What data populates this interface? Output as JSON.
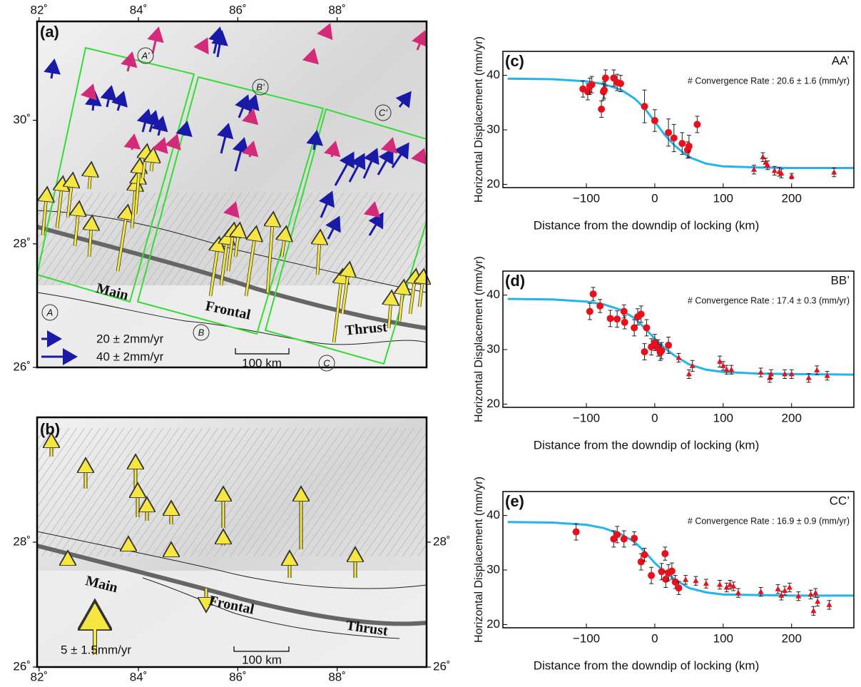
{
  "chart_data": [
    {
      "type": "scatter",
      "panel_label": "(c)",
      "profile": "AA’",
      "annotation": "# Convergence Rate : 20.6 ± 1.6 (mm/yr)",
      "xlabel": "Distance from the downdip of locking (km)",
      "ylabel": "Horizontal Displacement (mm/yr)",
      "xlim": [
        -222,
        291
      ],
      "ylim": [
        19.4,
        44.4
      ],
      "xticks": [
        {
          "value": -100,
          "label": "−100"
        },
        0,
        100,
        200
      ],
      "yticks": [
        20,
        30,
        40
      ],
      "series": [
        {
          "marker": "line",
          "color": "#22b5ea",
          "x": [
            -215,
            -150,
            -100,
            -75,
            -50,
            -30,
            -15,
            0,
            15,
            30,
            50,
            75,
            100,
            150,
            200,
            291
          ],
          "values": [
            39.4,
            39.3,
            38.9,
            38.4,
            37.4,
            35.8,
            34.0,
            31.5,
            29.0,
            27.0,
            25.0,
            23.8,
            23.3,
            23.1,
            23.0,
            23.0
          ]
        },
        {
          "marker": "circle",
          "color": "#e8101c",
          "x": [
            -105,
            -98,
            -95,
            -92,
            -78,
            -75,
            -74,
            -72,
            -60,
            -55,
            -50,
            -15,
            0,
            20,
            28,
            40,
            48,
            50,
            62
          ],
          "values": [
            37.5,
            37,
            38,
            38.3,
            33.8,
            37,
            37.3,
            39.5,
            39.5,
            38.7,
            38.5,
            34.3,
            31.7,
            29.5,
            28.5,
            27.5,
            26.3,
            27,
            31
          ],
          "errors": [
            1.5,
            1.5,
            1.5,
            1.5,
            1.5,
            1.5,
            1.5,
            1.5,
            1.5,
            1.5,
            1.5,
            3,
            2,
            2.5,
            2.5,
            2,
            1.5,
            2,
            1.5
          ]
        },
        {
          "marker": "triangle",
          "color": "#e8101c",
          "x": [
            145,
            158,
            162,
            165,
            175,
            182,
            185,
            200,
            262
          ],
          "values": [
            22.7,
            25,
            24,
            23.5,
            22.5,
            22.3,
            22,
            21.5,
            22.2
          ],
          "errors": [
            0.8,
            0.8,
            0.8,
            0.8,
            0.8,
            0.8,
            0.8,
            0.5,
            0.8
          ]
        }
      ]
    },
    {
      "type": "scatter",
      "panel_label": "(d)",
      "profile": "BB’",
      "annotation": "# Convergence Rate : 17.4 ± 0.3 (mm/yr)",
      "xlabel": "Distance from the downdip of locking (km)",
      "ylabel": "Horizontal Displacement (mm/yr)",
      "xlim": [
        -222,
        291
      ],
      "ylim": [
        19.4,
        44.4
      ],
      "xticks": [
        {
          "value": -100,
          "label": "−100"
        },
        0,
        100,
        200
      ],
      "yticks": [
        20,
        30,
        40
      ],
      "series": [
        {
          "marker": "line",
          "color": "#22b5ea",
          "x": [
            -215,
            -150,
            -100,
            -75,
            -50,
            -30,
            -15,
            0,
            15,
            30,
            50,
            75,
            100,
            150,
            200,
            291
          ],
          "values": [
            39.3,
            39.2,
            38.8,
            38.3,
            37.3,
            35.8,
            34.0,
            32.0,
            30.2,
            28.8,
            27.3,
            26.3,
            25.9,
            25.6,
            25.5,
            25.4
          ]
        },
        {
          "marker": "circle",
          "color": "#e8101c",
          "x": [
            -95,
            -90,
            -80,
            -65,
            -55,
            -45,
            -44,
            -30,
            -25,
            -20,
            -15,
            -12,
            -5,
            0,
            5,
            8,
            10,
            20
          ],
          "values": [
            37,
            40.2,
            38,
            35.7,
            35.6,
            37,
            35,
            34,
            36,
            36.5,
            29.6,
            34,
            30.5,
            31.3,
            30.3,
            29.5,
            29.8,
            30.8
          ],
          "errors": [
            1.5,
            1.2,
            1.2,
            1.5,
            1.5,
            1.2,
            1.2,
            1.5,
            1.5,
            1.5,
            1.5,
            1.5,
            1.5,
            1.5,
            1.5,
            1.5,
            1.5,
            1.5
          ]
        },
        {
          "marker": "triangle",
          "color": "#e8101c",
          "x": [
            35,
            50,
            55,
            95,
            100,
            105,
            112,
            155,
            168,
            170,
            190,
            200,
            225,
            237,
            252
          ],
          "values": [
            28.5,
            25.5,
            27,
            27.8,
            27,
            26.3,
            26.3,
            25.8,
            24.8,
            25.5,
            25.5,
            25.5,
            24.8,
            26.2,
            25.2
          ],
          "errors": [
            0.8,
            0.8,
            1,
            1,
            0.8,
            0.8,
            0.8,
            0.8,
            0.8,
            0.8,
            0.8,
            0.8,
            0.8,
            0.8,
            0.8
          ]
        }
      ]
    },
    {
      "type": "scatter",
      "panel_label": "(e)",
      "profile": "CC’",
      "annotation": "# Convergence Rate : 16.9 ± 0.9 (mm/yr)",
      "xlabel": "Distance from the downdip of locking (km)",
      "ylabel": "Horizontal Displacement (mm/yr)",
      "xlim": [
        -222,
        291
      ],
      "ylim": [
        19.4,
        44.4
      ],
      "xticks": [
        {
          "value": -100,
          "label": "−100"
        },
        0,
        100,
        200
      ],
      "yticks": [
        20,
        30,
        40
      ],
      "series": [
        {
          "marker": "line",
          "color": "#22b5ea",
          "x": [
            -215,
            -150,
            -100,
            -75,
            -50,
            -30,
            -15,
            0,
            15,
            30,
            50,
            75,
            100,
            150,
            200,
            291
          ],
          "values": [
            38.8,
            38.7,
            38.3,
            37.7,
            36.6,
            35.2,
            33.4,
            31.3,
            29.6,
            28.2,
            26.7,
            25.9,
            25.5,
            25.4,
            25.3,
            25.3
          ]
        },
        {
          "marker": "circle",
          "color": "#e8101c",
          "x": [
            -115,
            -60,
            -55,
            -45,
            -30,
            -20,
            -15,
            -5,
            10,
            15,
            16,
            20,
            25,
            30,
            35
          ],
          "values": [
            37,
            35.7,
            36.5,
            35.7,
            35.8,
            31.5,
            32.8,
            29,
            29.7,
            33,
            28.3,
            29.5,
            29.8,
            27.8,
            26.7
          ],
          "errors": [
            1.5,
            1.5,
            1.5,
            1.5,
            1.2,
            1.5,
            1.2,
            1.5,
            1.5,
            1.2,
            1.5,
            1.5,
            1.5,
            1.2,
            1.2
          ]
        },
        {
          "marker": "triangle",
          "color": "#e8101c",
          "x": [
            45,
            60,
            75,
            95,
            105,
            110,
            115,
            122,
            155,
            180,
            185,
            190,
            197,
            210,
            228,
            232,
            235,
            238,
            255
          ],
          "values": [
            28.2,
            28,
            27.5,
            27.3,
            26.8,
            27.3,
            27,
            25.8,
            26,
            26.5,
            25.3,
            26.2,
            26.8,
            25.2,
            25.5,
            22.5,
            25.8,
            24.2,
            23.6
          ],
          "errors": [
            0.8,
            0.8,
            0.8,
            0.8,
            0.8,
            0.8,
            0.8,
            0.8,
            0.8,
            0.8,
            0.8,
            0.8,
            0.8,
            0.8,
            0.8,
            0.8,
            0.8,
            0.8,
            0.8
          ]
        }
      ]
    }
  ],
  "maps": [
    {
      "panel_label": "(a)",
      "xlim": [
        81.96,
        89.8
      ],
      "ylim": [
        26,
        31.6
      ],
      "xticks": [
        {
          "value": 82,
          "label": "82˚"
        },
        {
          "value": 84,
          "label": "84˚"
        },
        {
          "value": 86,
          "label": "86˚"
        },
        {
          "value": 88,
          "label": "88˚"
        }
      ],
      "yticks": [
        {
          "value": 26,
          "label": "26˚"
        },
        {
          "value": 28,
          "label": "28˚"
        },
        {
          "value": 30,
          "label": "30˚"
        }
      ],
      "fault_labels": [
        "Main",
        "Frontal",
        "Thrust"
      ],
      "profile_labels": [
        "A",
        "A’",
        "B",
        "B’",
        "C",
        "C’"
      ],
      "legend": [
        "20 ± 2mm/yr",
        "40 ± 2mm/yr"
      ],
      "scale_bar": "100 km"
    },
    {
      "panel_label": "(b)",
      "xlim": [
        81.96,
        89.8
      ],
      "ylim": [
        26,
        30
      ],
      "xticks": [
        {
          "value": 82,
          "label": "82˚"
        },
        {
          "value": 84,
          "label": "84˚"
        },
        {
          "value": 86,
          "label": "86˚"
        },
        {
          "value": 88,
          "label": "88˚"
        }
      ],
      "yticks": [
        {
          "value": 26,
          "label": "26˚"
        },
        {
          "value": 28,
          "label": "28˚"
        }
      ],
      "fault_labels": [
        "Main",
        "Frontal",
        "Thrust"
      ],
      "legend": [
        "5 ± 1.5mm/yr"
      ],
      "scale_bar": "100 km"
    }
  ]
}
